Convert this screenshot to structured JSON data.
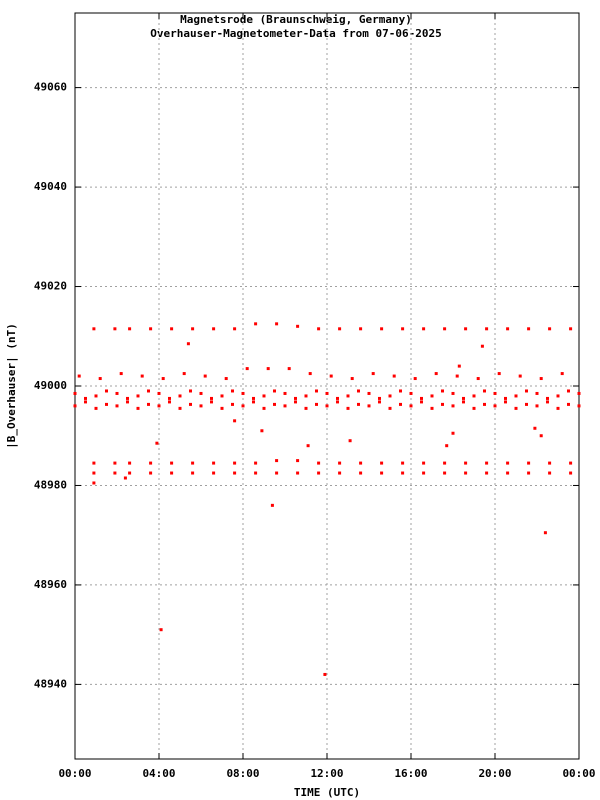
{
  "chart_data": {
    "type": "scatter",
    "title": "Magnetsrode (Braunschweig, Germany)",
    "subtitle": "Overhauser-Magnetometer-Data from 07-06-2025",
    "x_label": "TIME (UTC)",
    "y_label": "|B_Overhauser| (nT)",
    "grid": true,
    "xlim": [
      0,
      24
    ],
    "xticks": [
      {
        "value": 0,
        "label": "00:00"
      },
      {
        "value": 4,
        "label": "04:00"
      },
      {
        "value": 8,
        "label": "08:00"
      },
      {
        "value": 12,
        "label": "12:00"
      },
      {
        "value": 16,
        "label": "16:00"
      },
      {
        "value": 20,
        "label": "20:00"
      },
      {
        "value": 24,
        "label": "00:00"
      }
    ],
    "ylim": [
      48925,
      49075
    ],
    "yticks": [
      48940,
      48960,
      48980,
      49000,
      49020,
      49040,
      49060
    ],
    "series": [
      {
        "color": "#ff0000",
        "x": [
          0,
          0.5,
          1,
          1.5,
          2,
          2.5,
          3,
          3.5,
          4,
          4.5,
          5,
          5.5,
          6,
          6.5,
          7,
          7.5,
          8,
          8.5,
          9,
          9.5,
          10,
          10.5,
          11,
          11.5,
          12,
          12.5,
          13,
          13.5,
          14,
          14.5,
          15,
          15.5,
          16,
          16.5,
          17,
          17.5,
          18,
          18.5,
          19,
          19.5,
          20,
          20.5,
          21,
          21.5,
          22,
          22.5,
          23,
          23.5,
          24,
          0,
          0.5,
          1,
          1.5,
          2,
          2.5,
          3,
          3.5,
          4,
          4.5,
          5,
          5.5,
          6,
          6.5,
          7,
          7.5,
          8,
          8.5,
          9,
          9.5,
          10,
          10.5,
          11,
          11.5,
          12,
          12.5,
          13,
          13.5,
          14,
          14.5,
          15,
          15.5,
          16,
          16.5,
          17,
          17.5,
          18,
          18.5,
          19,
          19.5,
          20,
          20.5,
          21,
          21.5,
          22,
          22.5,
          23,
          23.5,
          24,
          0.2,
          1.2,
          2.2,
          3.2,
          4.2,
          5.2,
          6.2,
          7.2,
          8.2,
          9.2,
          10.2,
          11.2,
          12.2,
          13.2,
          14.2,
          15.2,
          16.2,
          17.2,
          18.2,
          19.2,
          20.2,
          21.2,
          22.2,
          23.2,
          0.9,
          1.9,
          2.6,
          3.6,
          4.6,
          5.6,
          6.6,
          7.6,
          8.6,
          9.6,
          10.6,
          11.6,
          12.6,
          13.6,
          14.6,
          15.6,
          16.6,
          17.6,
          18.6,
          19.6,
          20.6,
          21.6,
          22.6,
          23.6,
          0.9,
          1.9,
          2.6,
          3.6,
          4.6,
          5.6,
          6.6,
          7.6,
          8.6,
          9.6,
          10.6,
          11.6,
          12.6,
          13.6,
          14.6,
          15.6,
          16.6,
          17.6,
          18.6,
          19.6,
          20.6,
          21.6,
          22.6,
          23.6,
          0.9,
          1.9,
          2.6,
          3.6,
          4.6,
          5.6,
          6.6,
          7.6,
          8.6,
          9.6,
          10.6,
          11.6,
          12.6,
          13.6,
          14.6,
          15.6,
          16.6,
          17.6,
          18.6,
          19.6,
          20.6,
          21.6,
          22.6,
          23.6,
          0.9,
          2.4,
          3.9,
          4.1,
          5.4,
          7.6,
          8.9,
          9.4,
          11.1,
          11.9,
          13.1,
          17.7,
          18.0,
          18.3,
          19.4,
          21.9,
          22.2,
          22.4
        ],
        "values": [
          48998.5,
          48997.5,
          48998,
          48999,
          48998.5,
          48997.5,
          48998,
          48999,
          48998.5,
          48997.5,
          48998,
          48999,
          48998.5,
          48997.5,
          48998,
          48999,
          48998.5,
          48997.5,
          48998,
          48999,
          48998.5,
          48997.5,
          48998,
          48999,
          48998.5,
          48997.5,
          48998,
          48999,
          48998.5,
          48997.5,
          48998,
          48999,
          48998.5,
          48997.5,
          48998,
          48999,
          48998.5,
          48997.5,
          48998,
          48999,
          48998.5,
          48997.5,
          48998,
          48999,
          48998.5,
          48997.5,
          48998,
          48999,
          48998.5,
          48996,
          48996.8,
          48995.5,
          48996.3,
          48996,
          48996.8,
          48995.5,
          48996.3,
          48996,
          48996.8,
          48995.5,
          48996.3,
          48996,
          48996.8,
          48995.5,
          48996.3,
          48996,
          48996.8,
          48995.5,
          48996.3,
          48996,
          48996.8,
          48995.5,
          48996.3,
          48996,
          48996.8,
          48995.5,
          48996.3,
          48996,
          48996.8,
          48995.5,
          48996.3,
          48996,
          48996.8,
          48995.5,
          48996.3,
          48996,
          48996.8,
          48995.5,
          48996.3,
          48996,
          48996.8,
          48995.5,
          48996.3,
          48996,
          48996.8,
          48995.5,
          48996.3,
          48996,
          49002,
          49001.5,
          49002.5,
          49002,
          49001.5,
          49002.5,
          49002,
          49001.5,
          49003.5,
          49003.5,
          49003.5,
          49002.5,
          49002,
          49001.5,
          49002.5,
          49002,
          49001.5,
          49002.5,
          49002,
          49001.5,
          49002.5,
          49002,
          49001.5,
          49002.5,
          49011.5,
          49011.5,
          49011.5,
          49011.5,
          49011.5,
          49011.5,
          49011.5,
          49011.5,
          49012.5,
          49012.5,
          49012,
          49011.5,
          49011.5,
          49011.5,
          49011.5,
          49011.5,
          49011.5,
          49011.5,
          49011.5,
          49011.5,
          49011.5,
          49011.5,
          49011.5,
          49011.5,
          48984.5,
          48984.5,
          48984.5,
          48984.5,
          48984.5,
          48984.5,
          48984.5,
          48984.5,
          48984.5,
          48985,
          48985,
          48984.5,
          48984.5,
          48984.5,
          48984.5,
          48984.5,
          48984.5,
          48984.5,
          48984.5,
          48984.5,
          48984.5,
          48984.5,
          48984.5,
          48984.5,
          48982.5,
          48982.5,
          48982.5,
          48982.5,
          48982.5,
          48982.5,
          48982.5,
          48982.5,
          48982.5,
          48982.5,
          48982.5,
          48982.5,
          48982.5,
          48982.5,
          48982.5,
          48982.5,
          48982.5,
          48982.5,
          48982.5,
          48982.5,
          48982.5,
          48982.5,
          48982.5,
          48982.5,
          48980.5,
          48981.5,
          48988.5,
          48951,
          49008.5,
          48993,
          48991,
          48976,
          48988,
          48942,
          48989,
          48988,
          48990.5,
          49004,
          49008,
          48991.5,
          48990,
          48970.5
        ]
      }
    ]
  }
}
